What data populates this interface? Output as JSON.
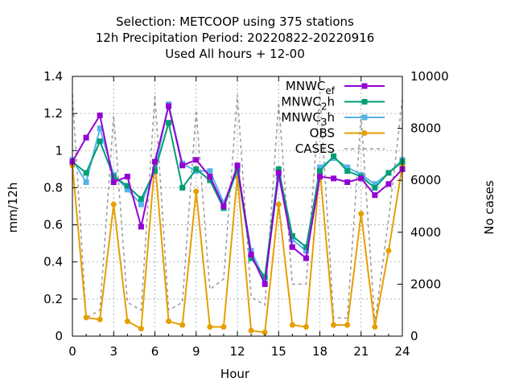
{
  "chart_data": {
    "type": "line",
    "title_lines": [
      "Selection: METCOOP using   375 stations",
      "12h Precipitation   Period: 20220822-20220916",
      "Used  All hours  + 12-00"
    ],
    "xlabel": "Hour",
    "ylabel": "mm/12h",
    "y2label": "No cases",
    "xlim": [
      0,
      24
    ],
    "ylim": [
      0,
      1.4
    ],
    "y2lim": [
      0,
      10000
    ],
    "xticks": [
      0,
      3,
      6,
      9,
      12,
      15,
      18,
      21,
      24
    ],
    "yticks": [
      0,
      0.2,
      0.4,
      0.6,
      0.8,
      1,
      1.2,
      1.4
    ],
    "y2ticks": [
      0,
      2000,
      4000,
      6000,
      8000,
      10000
    ],
    "grid": true,
    "legend_position": "top-right",
    "x": [
      0,
      1,
      2,
      3,
      4,
      5,
      6,
      7,
      8,
      9,
      10,
      11,
      12,
      13,
      14,
      15,
      16,
      17,
      18,
      19,
      20,
      21,
      22,
      23,
      24
    ],
    "series": [
      {
        "name": "MNWC_ef",
        "color": "#9400d3",
        "marker": "square",
        "axis": "y1",
        "values": [
          0.94,
          1.07,
          1.19,
          0.83,
          0.86,
          0.59,
          0.94,
          1.24,
          0.92,
          0.95,
          0.86,
          0.7,
          0.92,
          0.44,
          0.28,
          0.88,
          0.48,
          0.42,
          0.86,
          0.85,
          0.83,
          0.85,
          0.76,
          0.82,
          0.9
        ]
      },
      {
        "name": "MNWC_2h",
        "color": "#009e73",
        "marker": "square",
        "axis": "y1",
        "values": [
          0.94,
          0.88,
          1.05,
          0.86,
          0.81,
          0.74,
          0.89,
          1.15,
          0.8,
          0.9,
          0.84,
          0.69,
          0.9,
          0.42,
          0.32,
          0.9,
          0.54,
          0.48,
          0.89,
          0.97,
          0.89,
          0.86,
          0.8,
          0.88,
          0.94
        ]
      },
      {
        "name": "MNWC_3h",
        "color": "#56b4e9",
        "marker": "square",
        "axis": "y1",
        "values": [
          0.95,
          0.83,
          1.12,
          0.87,
          0.79,
          0.71,
          0.9,
          1.25,
          0.93,
          0.89,
          0.89,
          0.72,
          0.89,
          0.46,
          0.3,
          0.86,
          0.52,
          0.46,
          0.91,
          0.96,
          0.91,
          0.87,
          0.82,
          0.88,
          0.95
        ]
      },
      {
        "name": "OBS",
        "color": "#e69f00",
        "marker": "circle",
        "axis": "y1",
        "values": [
          0.92,
          0.1,
          0.09,
          0.71,
          0.08,
          0.04,
          0.94,
          0.08,
          0.06,
          0.78,
          0.05,
          0.05,
          0.86,
          0.03,
          0.02,
          0.71,
          0.06,
          0.05,
          0.9,
          0.06,
          0.06,
          0.66,
          0.05,
          0.46,
          0.92
        ]
      },
      {
        "name": "CASES",
        "color": "#999999",
        "marker": "none",
        "dashed": true,
        "axis": "y2",
        "values": [
          9300,
          700,
          1000,
          8500,
          1300,
          1000,
          9300,
          1000,
          1300,
          8700,
          1800,
          2200,
          9300,
          1500,
          1200,
          9000,
          2000,
          2000,
          9400,
          700,
          700,
          8500,
          500,
          4500,
          9100
        ]
      }
    ]
  }
}
